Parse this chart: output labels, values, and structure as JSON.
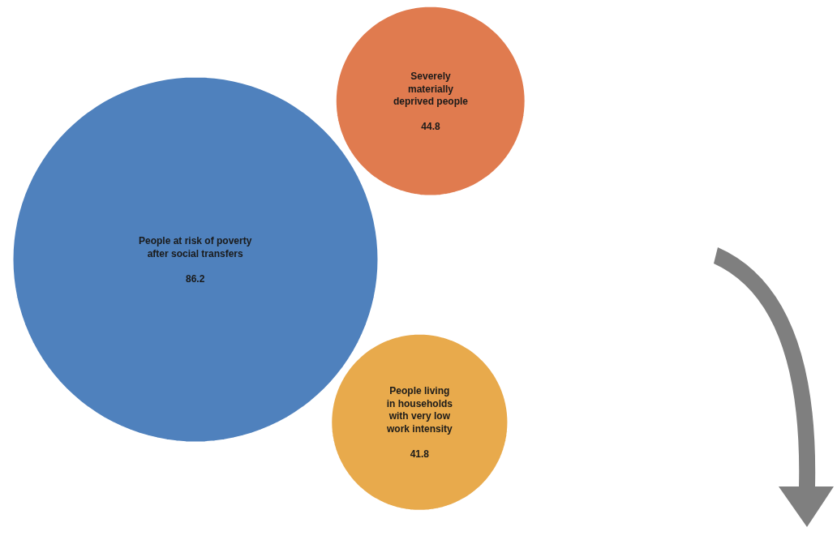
{
  "chart_data": {
    "type": "other",
    "categories": [
      "People at risk of poverty after social transfers",
      "Severely materially deprived people",
      "People living in households with very low work intensity"
    ],
    "values": [
      86.2,
      44.8,
      41.8
    ],
    "colors": [
      "#4f81bd",
      "#e07b4f",
      "#e8aa4c"
    ],
    "data_labels": true
  }
}
